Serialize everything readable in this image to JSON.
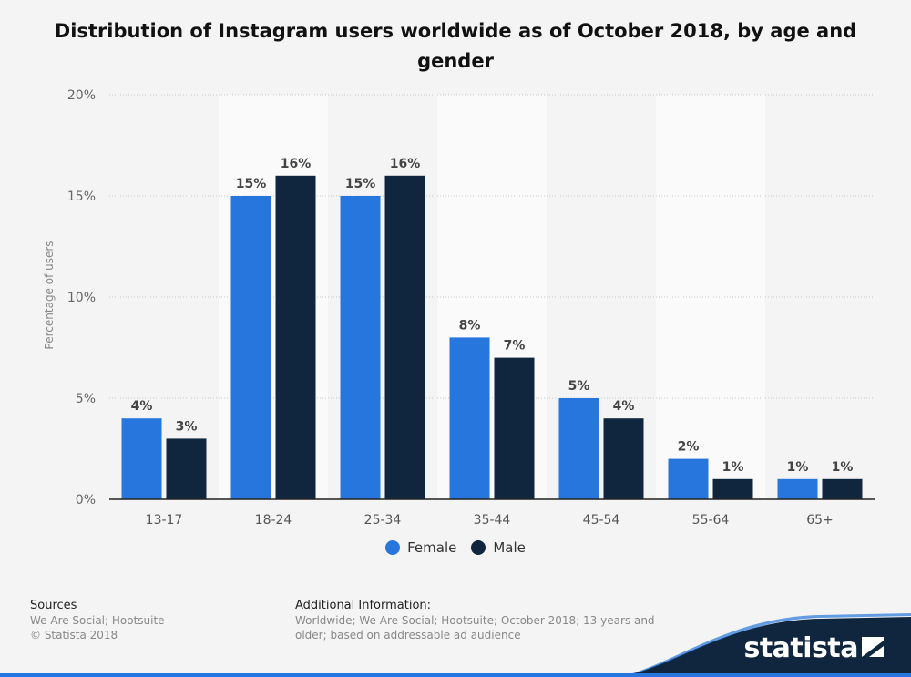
{
  "title": "Distribution of Instagram users worldwide as of October 2018, by age and gender",
  "chart_data": {
    "type": "bar",
    "title": "Distribution of Instagram users worldwide as of October 2018, by age and gender",
    "xlabel": "",
    "ylabel": "Percentage of users",
    "categories": [
      "13-17",
      "18-24",
      "25-34",
      "35-44",
      "45-54",
      "55-64",
      "65+"
    ],
    "series": [
      {
        "name": "Female",
        "values": [
          4,
          15,
          15,
          8,
          5,
          2,
          1
        ],
        "color": "#2676dd"
      },
      {
        "name": "Male",
        "values": [
          3,
          16,
          16,
          7,
          4,
          1,
          1
        ],
        "color": "#10263e"
      }
    ],
    "ylim": [
      0,
      20
    ],
    "yticks": [
      0,
      5,
      10,
      15,
      20
    ],
    "ytick_labels": [
      "0%",
      "5%",
      "10%",
      "15%",
      "20%"
    ],
    "value_suffix": "%",
    "grid": true,
    "legend_position": "bottom-center"
  },
  "legend": {
    "female": "Female",
    "male": "Male"
  },
  "footer": {
    "sources_head": "Sources",
    "sources_line1": "We Are Social; Hootsuite",
    "sources_line2": "© Statista 2018",
    "info_head": "Additional Information:",
    "info_text": "Worldwide; We Are Social; Hootsuite; October 2018; 13 years and older; based on addressable ad audience"
  },
  "brand": {
    "name": "statista",
    "color": "#10263e",
    "accent": "#2676dd"
  }
}
